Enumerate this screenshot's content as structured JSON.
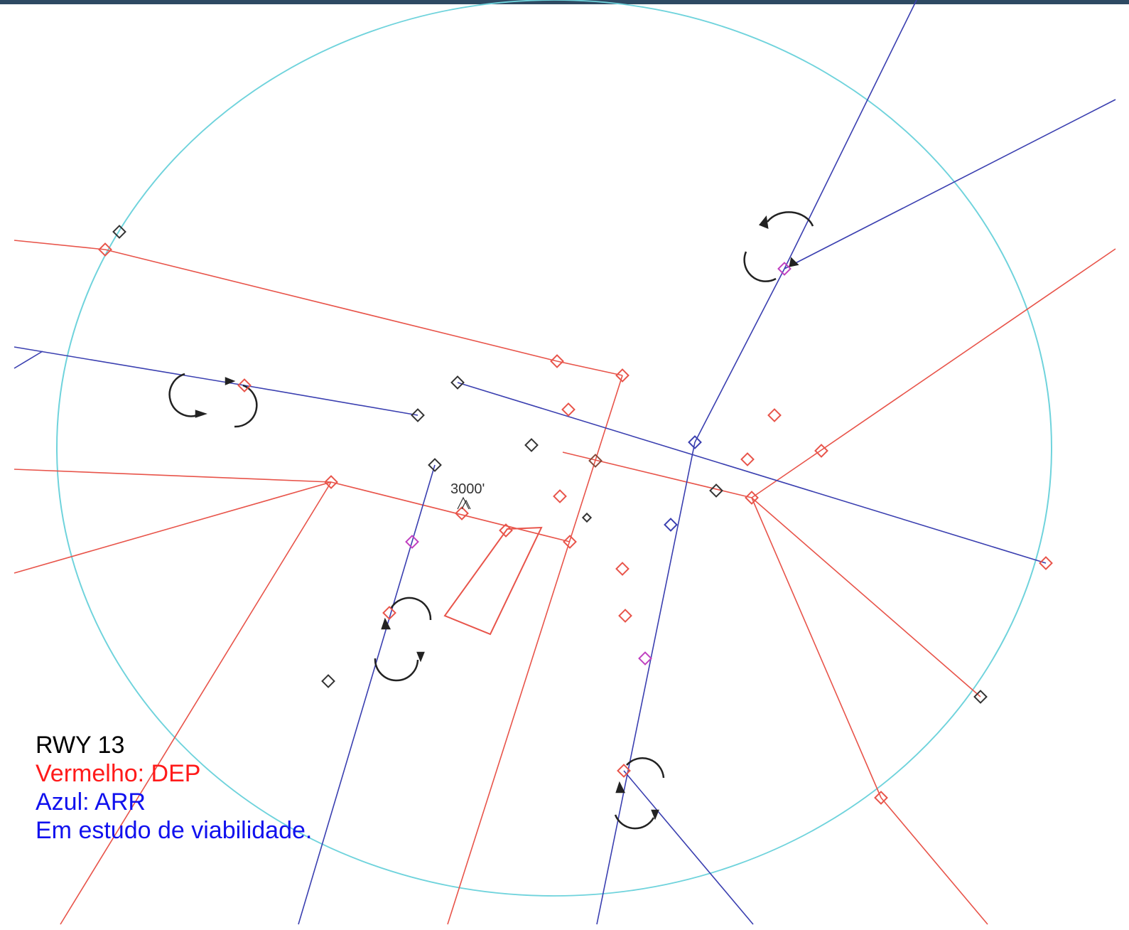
{
  "diagram": {
    "altitude_label": "3000'",
    "legend": {
      "runway": "RWY 13",
      "dep": "Vermelho: DEP",
      "arr": "Azul: ARR",
      "note": "Em estudo de viabilidade."
    }
  },
  "colors": {
    "dep": "#e8544a",
    "arr": "#3a3fb0",
    "ring": "#6fd3dc",
    "neutral": "#333333",
    "dep_text": "#ff1a1a",
    "arr_text": "#1111ee",
    "runway": "#000000"
  }
}
